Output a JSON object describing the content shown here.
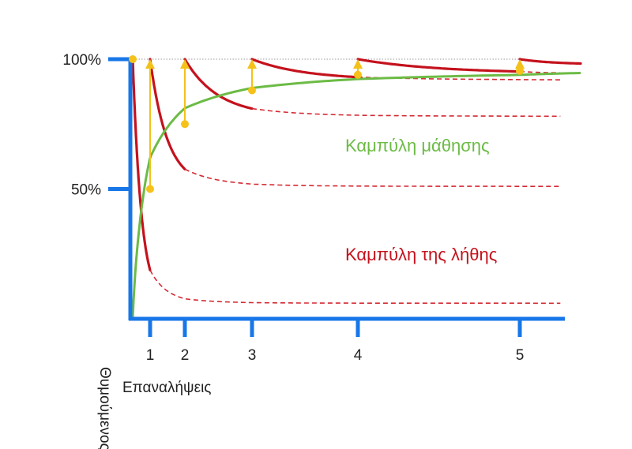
{
  "chart_data": {
    "type": "line",
    "xlabel": "Επαναλήψεις",
    "ylabel": "Θυμούμενος",
    "x_ticks": [
      "1",
      "2",
      "3",
      "4",
      "5"
    ],
    "y_ticks": [
      "100%",
      "50%"
    ],
    "y_tick_values": [
      100,
      50
    ],
    "ylim": [
      0,
      100
    ],
    "x_ticks_positions": [
      1,
      2,
      3,
      4,
      5
    ],
    "grid": false,
    "labels": {
      "learning": "Καμπύλη μάθησης",
      "forgetting": "Καμπύλη της λήθης"
    },
    "learning_curve": {
      "points": [
        [
          0,
          0
        ],
        [
          1,
          50
        ],
        [
          2,
          75
        ],
        [
          3,
          88
        ],
        [
          4,
          94
        ],
        [
          5,
          95.5
        ],
        [
          5.9,
          95.5
        ]
      ]
    },
    "forgetting_curves": [
      {
        "start_x": 0,
        "solid_to": 1,
        "dashed_end_x": 5.9,
        "asymptote": 6
      },
      {
        "start_x": 1,
        "solid_to": 2,
        "dashed_end_x": 5.9,
        "asymptote": 51
      },
      {
        "start_x": 2,
        "solid_to": 3,
        "dashed_end_x": 5.9,
        "asymptote": 78
      },
      {
        "start_x": 3,
        "solid_to": 4,
        "dashed_end_x": 5.9,
        "asymptote": 92
      },
      {
        "start_x": 4,
        "solid_to": 5,
        "dashed_end_x": 5.9,
        "asymptote": 94.5
      },
      {
        "start_x": 5,
        "solid_to": 5.9,
        "dashed_end_x": 5.9,
        "asymptote": 98
      }
    ],
    "review_boosts": [
      {
        "x": 1,
        "from": 50,
        "to": 100
      },
      {
        "x": 2,
        "from": 75,
        "to": 100
      },
      {
        "x": 3,
        "from": 88,
        "to": 100
      },
      {
        "x": 4,
        "from": 94,
        "to": 100
      },
      {
        "x": 5,
        "from": 95.5,
        "to": 100
      }
    ],
    "colors": {
      "axis": "#1877e8",
      "learning": "#6cbb45",
      "forgetting": "#c4121d",
      "forgetting_dashed": "#d42a33",
      "arrow": "#f3c11a",
      "point": "#f6c21a",
      "guide": "#999999"
    }
  }
}
